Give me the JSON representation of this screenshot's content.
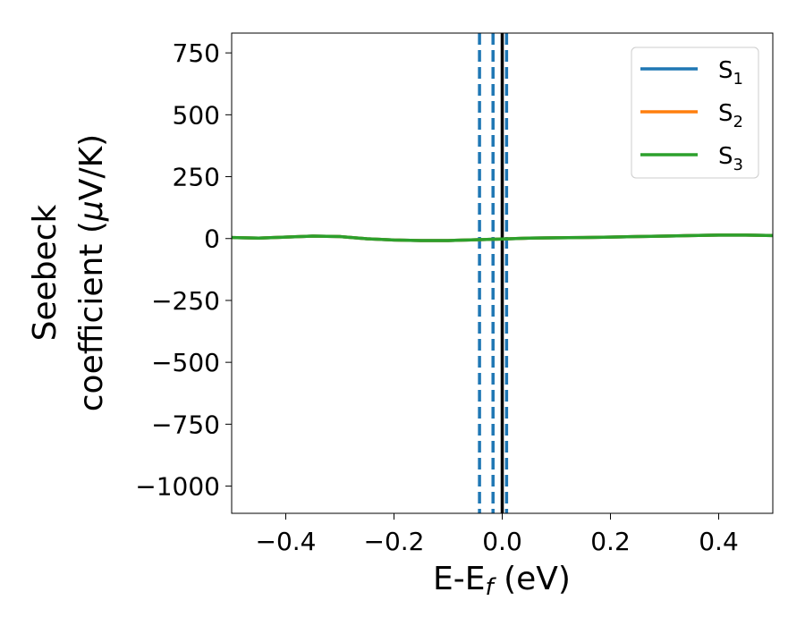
{
  "chart_data": {
    "type": "line",
    "title": "",
    "xlabel": {
      "main": "E-E",
      "sub": "f",
      "tail": " (eV)"
    },
    "ylabel": {
      "line1": "Seebeck",
      "line2_prefix": "coefficient  (",
      "line2_mu": "μ",
      "line2_suffix": "V/K)"
    },
    "xlim": [
      -0.5,
      0.5
    ],
    "ylim": [
      -1110,
      830
    ],
    "xticks": [
      -0.4,
      -0.2,
      0.0,
      0.2,
      0.4
    ],
    "xtick_labels": [
      "−0.4",
      "−0.2",
      "0.0",
      "0.2",
      "0.4"
    ],
    "yticks": [
      750,
      500,
      250,
      0,
      -250,
      -500,
      -750,
      -1000
    ],
    "ytick_labels": [
      "750",
      "500",
      "250",
      "0",
      "−250",
      "−500",
      "−750",
      "−1000"
    ],
    "grid": false,
    "legend_position": "top-right",
    "series": [
      {
        "name": "S",
        "sub": "1",
        "color": "#1f77b4",
        "x": [
          -0.5,
          -0.45,
          -0.4,
          -0.35,
          -0.3,
          -0.25,
          -0.2,
          -0.15,
          -0.1,
          -0.05,
          0.0,
          0.05,
          0.1,
          0.15,
          0.2,
          0.25,
          0.3,
          0.35,
          0.4,
          0.45,
          0.5
        ],
        "y": [
          4,
          2,
          6,
          10,
          8,
          -1,
          -6,
          -8,
          -8,
          -5,
          -2,
          2,
          3,
          4,
          6,
          8,
          10,
          12,
          14,
          14,
          12
        ]
      },
      {
        "name": "S",
        "sub": "2",
        "color": "#ff7f0e",
        "x": [
          -0.5,
          -0.45,
          -0.4,
          -0.35,
          -0.3,
          -0.25,
          -0.2,
          -0.15,
          -0.1,
          -0.05,
          0.0,
          0.05,
          0.1,
          0.15,
          0.2,
          0.25,
          0.3,
          0.35,
          0.4,
          0.45,
          0.5
        ],
        "y": [
          4,
          2,
          6,
          10,
          8,
          -1,
          -6,
          -8,
          -8,
          -5,
          -2,
          2,
          3,
          4,
          6,
          8,
          10,
          12,
          14,
          14,
          12
        ]
      },
      {
        "name": "S",
        "sub": "3",
        "color": "#2ca02c",
        "x": [
          -0.5,
          -0.45,
          -0.4,
          -0.35,
          -0.3,
          -0.25,
          -0.2,
          -0.15,
          -0.1,
          -0.05,
          0.0,
          0.05,
          0.1,
          0.15,
          0.2,
          0.25,
          0.3,
          0.35,
          0.4,
          0.45,
          0.5
        ],
        "y": [
          4,
          2,
          6,
          10,
          8,
          -1,
          -6,
          -8,
          -8,
          -5,
          -2,
          2,
          3,
          4,
          6,
          8,
          10,
          12,
          14,
          14,
          12
        ]
      }
    ],
    "vlines": [
      {
        "x": 0.0,
        "style": "solid",
        "color": "#000000"
      },
      {
        "x": -0.042,
        "style": "dashed",
        "color": "#1f77b4"
      },
      {
        "x": -0.017,
        "style": "dashed",
        "color": "#1f77b4"
      },
      {
        "x": 0.008,
        "style": "dashed",
        "color": "#1f77b4"
      }
    ]
  }
}
